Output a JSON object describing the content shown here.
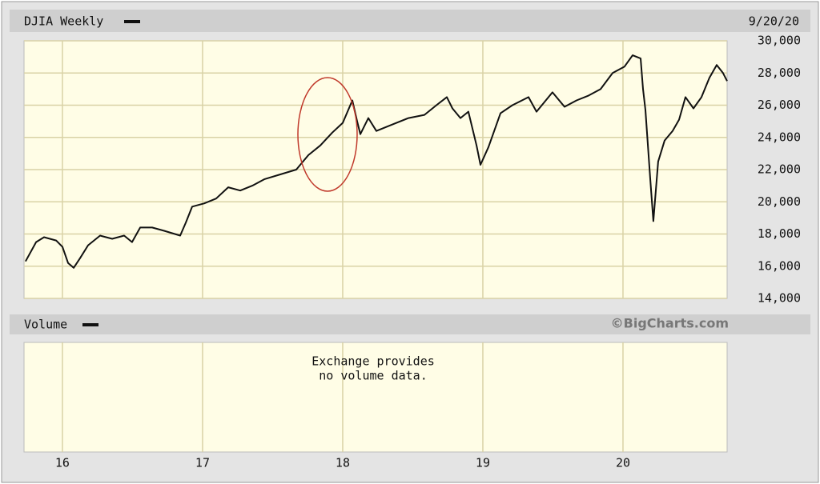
{
  "chart_data": {
    "type": "line",
    "title": "DJIA Weekly",
    "date": "9/20/20",
    "volume_label": "Volume",
    "credit": "©BigCharts.com",
    "volume_note": [
      "Exchange provides",
      "no volume data."
    ],
    "x": [
      15.737,
      15.812,
      15.869,
      15.955,
      16.0,
      16.04,
      16.08,
      16.126,
      16.183,
      16.269,
      16.355,
      16.44,
      16.497,
      16.555,
      16.64,
      16.726,
      16.84,
      16.88,
      16.926,
      17.011,
      17.097,
      17.183,
      17.269,
      17.355,
      17.44,
      17.555,
      17.669,
      17.755,
      17.84,
      17.926,
      18.0,
      18.069,
      18.103,
      18.126,
      18.183,
      18.24,
      18.355,
      18.469,
      18.583,
      18.669,
      18.743,
      18.783,
      18.84,
      18.897,
      18.955,
      18.983,
      19.04,
      19.126,
      19.211,
      19.326,
      19.383,
      19.497,
      19.583,
      19.669,
      19.755,
      19.84,
      19.926,
      20.011,
      20.069,
      20.126,
      20.143,
      20.16,
      20.194,
      20.217,
      20.251,
      20.297,
      20.354,
      20.4,
      20.446,
      20.503,
      20.56,
      20.617,
      20.669,
      20.714,
      20.743
    ],
    "series": [
      {
        "name": "DJIA Weekly",
        "color": "#111111",
        "values": [
          16300,
          17500,
          17800,
          17600,
          17200,
          16200,
          15900,
          16500,
          17300,
          17900,
          17700,
          17900,
          17500,
          18400,
          18400,
          18200,
          17900,
          18700,
          19700,
          19900,
          20200,
          20900,
          20700,
          21000,
          21400,
          21700,
          22000,
          22900,
          23500,
          24300,
          24900,
          26300,
          25000,
          24200,
          25200,
          24400,
          24800,
          25200,
          25400,
          26000,
          26500,
          25800,
          25200,
          25600,
          23500,
          22300,
          23400,
          25500,
          26000,
          26500,
          25600,
          26800,
          25900,
          26300,
          26600,
          27000,
          28000,
          28400,
          29100,
          28900,
          27000,
          25700,
          21500,
          18800,
          22500,
          23800,
          24400,
          25100,
          26500,
          25800,
          26500,
          27700,
          28500,
          28000,
          27500
        ]
      }
    ],
    "xlim": [
      15.726,
      20.743
    ],
    "xticks": [
      16,
      17,
      18,
      19,
      20
    ],
    "ylim": [
      14000,
      30000
    ],
    "yticks": [
      {
        "value": 14000,
        "label": "14,000"
      },
      {
        "value": 16000,
        "label": "16,000"
      },
      {
        "value": 18000,
        "label": "18,000"
      },
      {
        "value": 20000,
        "label": "20,000"
      },
      {
        "value": 22000,
        "label": "22,000"
      },
      {
        "value": 24000,
        "label": "24,000"
      },
      {
        "value": 26000,
        "label": "26,000"
      },
      {
        "value": 28000,
        "label": "28,000"
      },
      {
        "value": 30000,
        "label": "30,000"
      }
    ],
    "grid": true
  }
}
